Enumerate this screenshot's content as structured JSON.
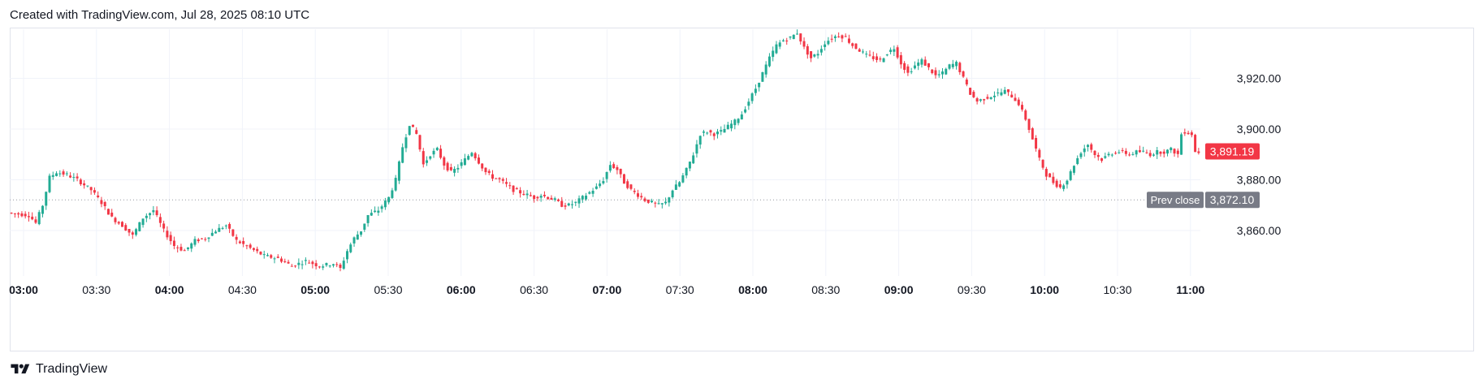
{
  "header": {
    "title": "Created with TradingView.com, Jul 28, 2025 08:10 UTC"
  },
  "footer": {
    "brand": "TradingView"
  },
  "chart_data": {
    "type": "candlestick",
    "ylim": [
      3840,
      3945
    ],
    "y_ticks": [
      {
        "value": 3860,
        "label": "3,860.00"
      },
      {
        "value": 3880,
        "label": "3,880.00"
      },
      {
        "value": 3900,
        "label": "3,900.00"
      },
      {
        "value": 3920,
        "label": "3,920.00"
      }
    ],
    "x_ticks": [
      {
        "label": "03:00",
        "major": true
      },
      {
        "label": "03:30",
        "major": false
      },
      {
        "label": "04:00",
        "major": true
      },
      {
        "label": "04:30",
        "major": false
      },
      {
        "label": "05:00",
        "major": true
      },
      {
        "label": "05:30",
        "major": false
      },
      {
        "label": "06:00",
        "major": true
      },
      {
        "label": "06:30",
        "major": false
      },
      {
        "label": "07:00",
        "major": true
      },
      {
        "label": "07:30",
        "major": false
      },
      {
        "label": "08:00",
        "major": true
      },
      {
        "label": "08:30",
        "major": false
      },
      {
        "label": "09:00",
        "major": true
      },
      {
        "label": "09:30",
        "major": false
      },
      {
        "label": "10:00",
        "major": true
      },
      {
        "label": "10:30",
        "major": false
      },
      {
        "label": "11:00",
        "major": true
      }
    ],
    "path_anchors": [
      [
        0,
        3867
      ],
      [
        6,
        3866
      ],
      [
        8,
        3863
      ],
      [
        10,
        3870
      ],
      [
        12,
        3881
      ],
      [
        14,
        3883
      ],
      [
        17,
        3882
      ],
      [
        20,
        3880
      ],
      [
        24,
        3876
      ],
      [
        27,
        3871
      ],
      [
        30,
        3865
      ],
      [
        33,
        3862
      ],
      [
        36,
        3858
      ],
      [
        39,
        3865
      ],
      [
        42,
        3868
      ],
      [
        45,
        3860
      ],
      [
        48,
        3854
      ],
      [
        51,
        3852
      ],
      [
        54,
        3856
      ],
      [
        57,
        3857
      ],
      [
        60,
        3860
      ],
      [
        63,
        3862
      ],
      [
        66,
        3856
      ],
      [
        70,
        3853
      ],
      [
        74,
        3850
      ],
      [
        78,
        3849
      ],
      [
        82,
        3846
      ],
      [
        86,
        3848
      ],
      [
        90,
        3846
      ],
      [
        94,
        3847
      ],
      [
        96,
        3845
      ],
      [
        98,
        3852
      ],
      [
        100,
        3857
      ],
      [
        102,
        3860
      ],
      [
        104,
        3866
      ],
      [
        107,
        3868
      ],
      [
        110,
        3873
      ],
      [
        112,
        3880
      ],
      [
        114,
        3893
      ],
      [
        116,
        3902
      ],
      [
        118,
        3898
      ],
      [
        120,
        3886
      ],
      [
        122,
        3890
      ],
      [
        124,
        3892
      ],
      [
        126,
        3886
      ],
      [
        128,
        3883
      ],
      [
        130,
        3885
      ],
      [
        132,
        3888
      ],
      [
        134,
        3891
      ],
      [
        136,
        3887
      ],
      [
        138,
        3883
      ],
      [
        140,
        3881
      ],
      [
        142,
        3880
      ],
      [
        144,
        3878
      ],
      [
        146,
        3876
      ],
      [
        148,
        3875
      ],
      [
        150,
        3874
      ],
      [
        152,
        3873
      ],
      [
        154,
        3874
      ],
      [
        156,
        3873
      ],
      [
        158,
        3872
      ],
      [
        160,
        3870
      ],
      [
        162,
        3870
      ],
      [
        164,
        3871
      ],
      [
        166,
        3873
      ],
      [
        168,
        3875
      ],
      [
        170,
        3877
      ],
      [
        172,
        3880
      ],
      [
        174,
        3886
      ],
      [
        176,
        3884
      ],
      [
        178,
        3879
      ],
      [
        180,
        3876
      ],
      [
        182,
        3874
      ],
      [
        184,
        3872
      ],
      [
        186,
        3871
      ],
      [
        188,
        3870
      ],
      [
        190,
        3871
      ],
      [
        192,
        3876
      ],
      [
        194,
        3879
      ],
      [
        196,
        3884
      ],
      [
        198,
        3890
      ],
      [
        200,
        3898
      ],
      [
        202,
        3899
      ],
      [
        204,
        3898
      ],
      [
        206,
        3899
      ],
      [
        208,
        3901
      ],
      [
        210,
        3903
      ],
      [
        212,
        3906
      ],
      [
        214,
        3911
      ],
      [
        216,
        3916
      ],
      [
        218,
        3922
      ],
      [
        220,
        3928
      ],
      [
        222,
        3933
      ],
      [
        224,
        3935
      ],
      [
        226,
        3936
      ],
      [
        228,
        3938
      ],
      [
        230,
        3932
      ],
      [
        232,
        3928
      ],
      [
        234,
        3930
      ],
      [
        236,
        3934
      ],
      [
        238,
        3936
      ],
      [
        240,
        3937
      ],
      [
        242,
        3936
      ],
      [
        244,
        3933
      ],
      [
        246,
        3931
      ],
      [
        248,
        3929
      ],
      [
        250,
        3928
      ],
      [
        252,
        3927
      ],
      [
        254,
        3930
      ],
      [
        256,
        3932
      ],
      [
        258,
        3926
      ],
      [
        260,
        3922
      ],
      [
        262,
        3925
      ],
      [
        264,
        3927
      ],
      [
        266,
        3924
      ],
      [
        268,
        3921
      ],
      [
        270,
        3922
      ],
      [
        272,
        3925
      ],
      [
        274,
        3926
      ],
      [
        276,
        3920
      ],
      [
        278,
        3914
      ],
      [
        280,
        3911
      ],
      [
        282,
        3912
      ],
      [
        284,
        3913
      ],
      [
        286,
        3914
      ],
      [
        288,
        3915
      ],
      [
        290,
        3913
      ],
      [
        292,
        3910
      ],
      [
        294,
        3904
      ],
      [
        296,
        3896
      ],
      [
        298,
        3888
      ],
      [
        300,
        3882
      ],
      [
        302,
        3879
      ],
      [
        304,
        3877
      ],
      [
        306,
        3880
      ],
      [
        308,
        3886
      ],
      [
        310,
        3891
      ],
      [
        312,
        3894
      ],
      [
        314,
        3890
      ],
      [
        316,
        3888
      ],
      [
        318,
        3890
      ],
      [
        320,
        3891
      ],
      [
        322,
        3891
      ],
      [
        324,
        3890
      ],
      [
        326,
        3891
      ],
      [
        328,
        3891
      ],
      [
        330,
        3890
      ],
      [
        332,
        3891
      ],
      [
        334,
        3891
      ],
      [
        336,
        3892
      ],
      [
        338,
        3890
      ],
      [
        339,
        3898
      ],
      [
        340,
        3899
      ],
      [
        342,
        3898
      ],
      [
        343,
        3891
      ]
    ],
    "last_price": {
      "label": "3,891.19",
      "value": 3891.19
    },
    "prev_close": {
      "label": "Prev close",
      "value_label": "3,872.10",
      "value": 3872.1
    }
  },
  "colors": {
    "up": "#22ab94",
    "down": "#f23645",
    "grid": "#f0f3fa",
    "axis_text": "#131722",
    "prev_close_line": "#9598a1",
    "prev_close_label_bg": "#787b86",
    "last_price_bg": "#f23645"
  }
}
